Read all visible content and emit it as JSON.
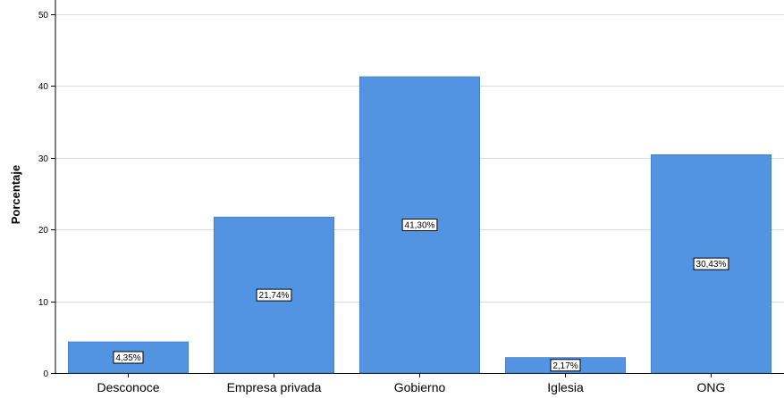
{
  "chart_data": {
    "type": "bar",
    "ylabel": "Porcentaje",
    "xlabel": "",
    "categories": [
      "Desconoce",
      "Empresa privada",
      "Gobierno",
      "Iglesia",
      "ONG"
    ],
    "values": [
      4.35,
      21.74,
      41.3,
      2.17,
      30.43
    ],
    "data_labels": [
      "4,35%",
      "21,74%",
      "41,30%",
      "2,17%",
      "30,43%"
    ],
    "ylim": [
      0,
      50
    ],
    "yticks": [
      0,
      10,
      20,
      30,
      40,
      50
    ],
    "grid": true,
    "bar_color": "#5294e2",
    "bar_edge_color": "#3c70b4"
  }
}
